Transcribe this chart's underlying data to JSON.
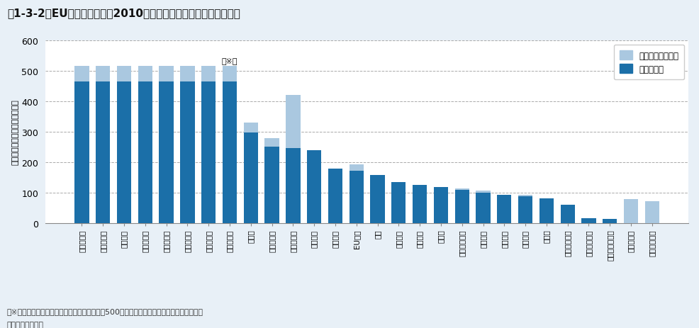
{
  "title": "図1-3-2　EU加盟国における2010年もしくは直近年のレジ袋使用量",
  "ylabel": "（年間一人当たりの使用枚数）",
  "ylim": [
    0,
    600
  ],
  "yticks": [
    0,
    100,
    200,
    300,
    400,
    500,
    600
  ],
  "footnote1": "（※）エストニアからスロベニアについては、500枚以上使用されていると推計されている",
  "footnote2": "資料：欧州委員会",
  "annotation": "（※）",
  "annotation_bar_index": 7,
  "legend_labels": [
    "リユース可能な袋",
    "使い捨て袋"
  ],
  "categories": [
    "エストニア",
    "ハンガリー",
    "ラトビア",
    "リトアニア",
    "ポーランド",
    "ポルトガル",
    "スロバキア",
    "スロベニア",
    "チェコ",
    "ルーマニア",
    "ブルガリア",
    "ギリシア",
    "イタリア",
    "EU平均",
    "英国",
    "キプロス",
    "スペイン",
    "マルタ",
    "スウェーデン",
    "ベルギー",
    "フランス",
    "オランダ",
    "ドイツ",
    "オーストリア",
    "アイルランド",
    "ルクセンブルク",
    "デンマーク",
    "フィンランド"
  ],
  "disposable": [
    466,
    466,
    466,
    466,
    466,
    466,
    466,
    466,
    298,
    250,
    245,
    240,
    178,
    172,
    157,
    135,
    125,
    117,
    108,
    100,
    93,
    87,
    80,
    60,
    15,
    14,
    0,
    0
  ],
  "reusable": [
    50,
    50,
    50,
    50,
    50,
    50,
    50,
    50,
    32,
    28,
    175,
    0,
    0,
    20,
    0,
    0,
    0,
    0,
    5,
    5,
    0,
    5,
    0,
    0,
    0,
    0,
    78,
    72
  ],
  "disposable_color": "#1b6fa8",
  "reusable_color": "#aac8e0",
  "background_color": "#e8f0f7",
  "plot_bg_color": "#ffffff",
  "grid_color": "#aaaaaa"
}
